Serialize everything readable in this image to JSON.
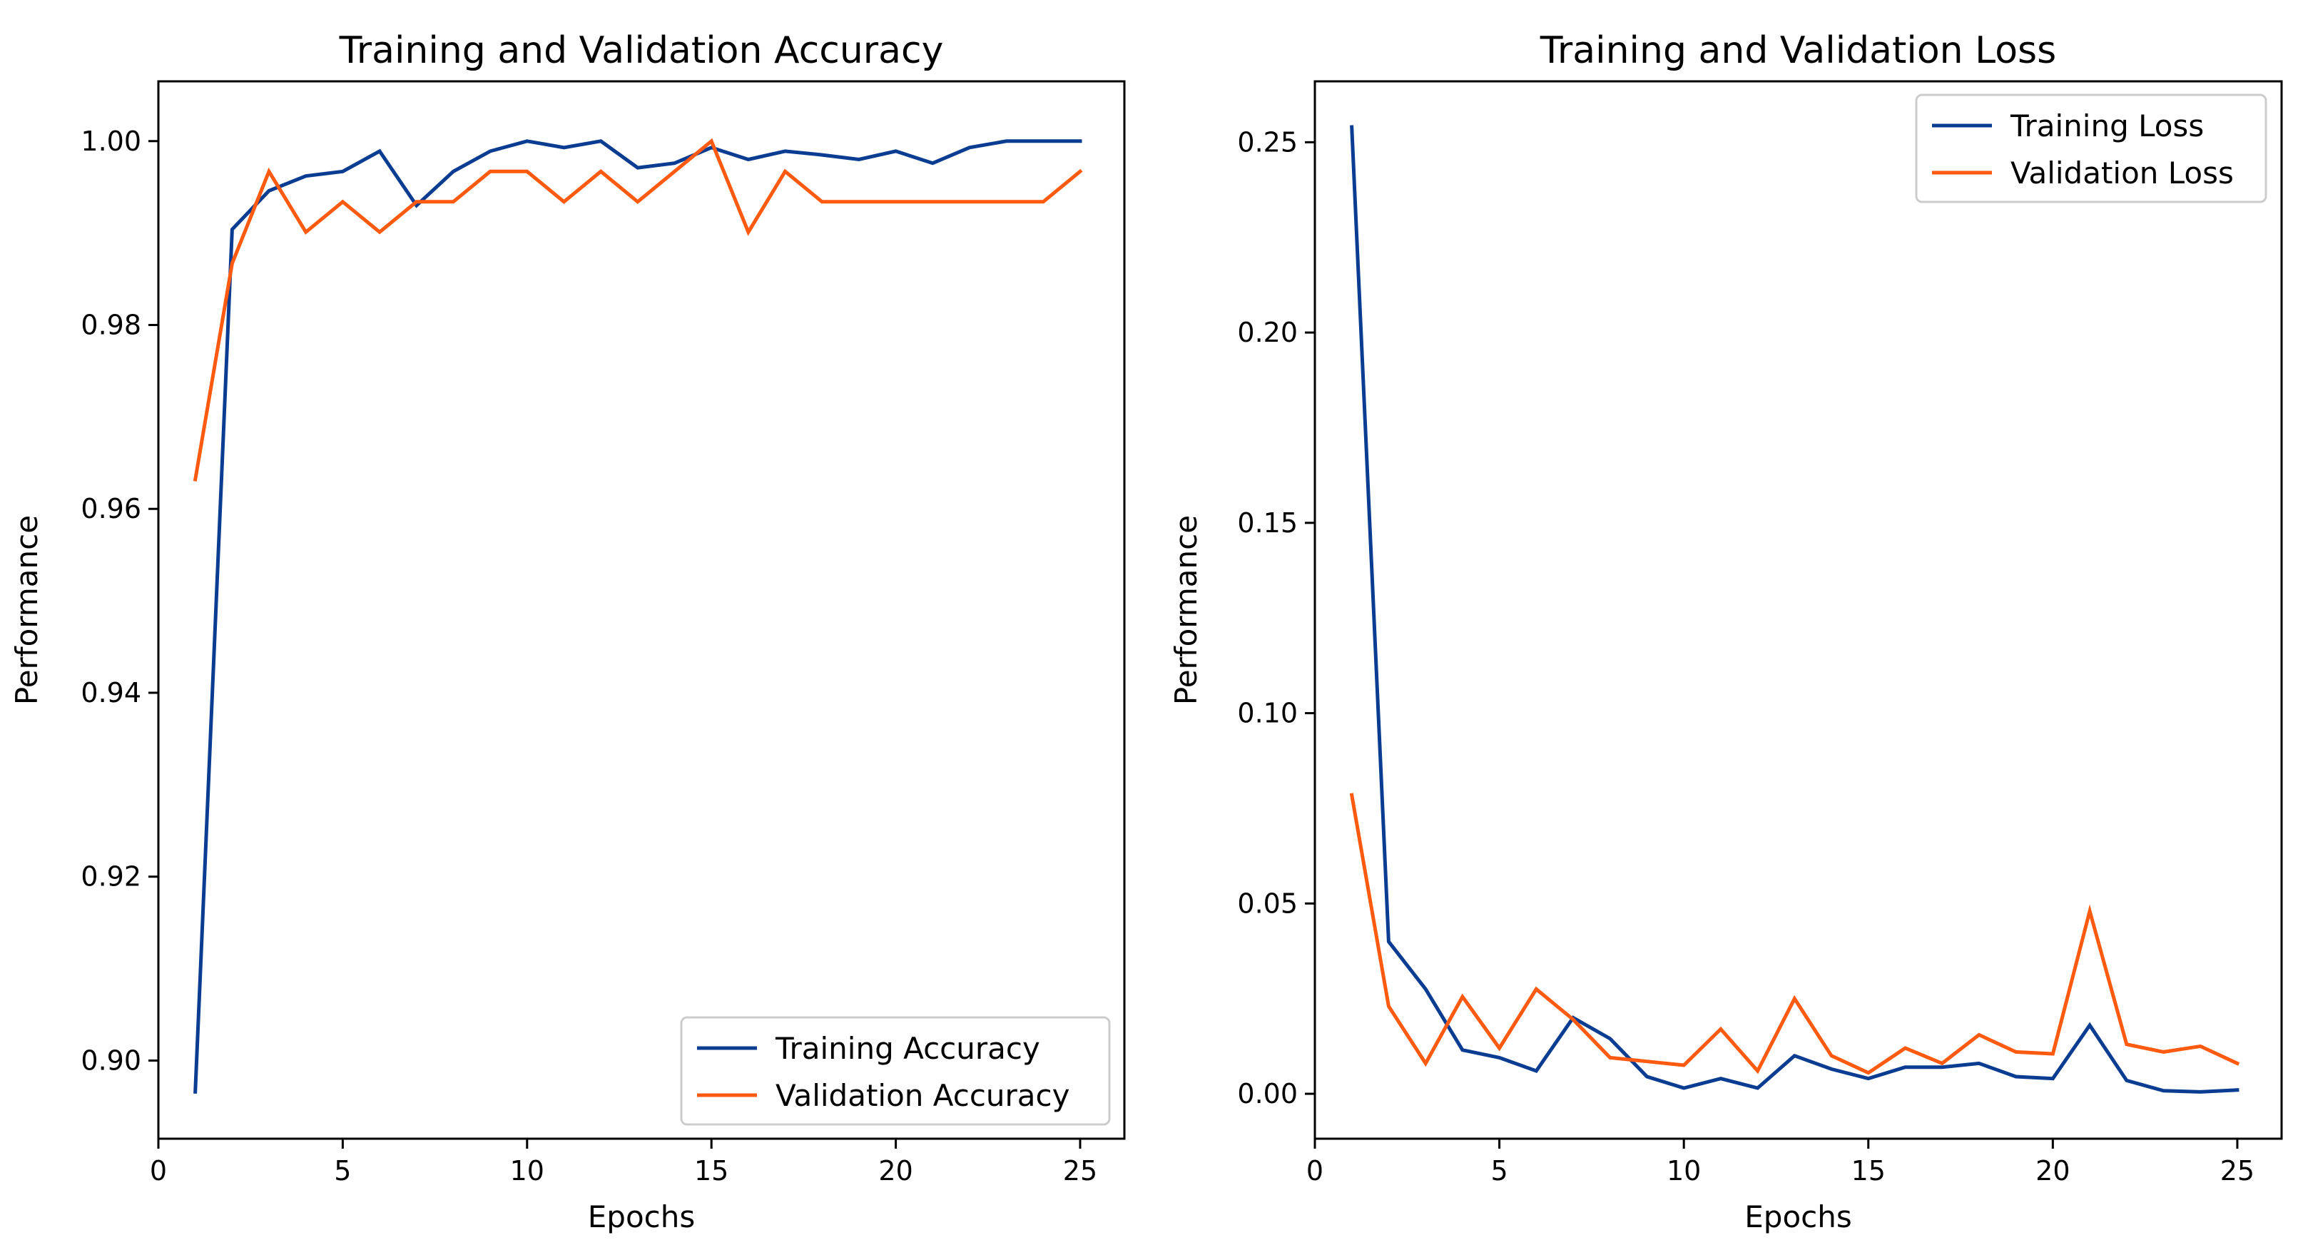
{
  "chart_data": [
    {
      "type": "line",
      "title": "Training and Validation Accuracy",
      "xlabel": "Epochs",
      "ylabel": "Performance",
      "xlim": [
        0,
        26.2
      ],
      "ylim": [
        0.8915,
        1.0065
      ],
      "xticks": [
        0,
        5,
        10,
        15,
        20,
        25
      ],
      "xtick_labels": [
        "0",
        "5",
        "10",
        "15",
        "20",
        "25"
      ],
      "yticks": [
        0.9,
        0.92,
        0.94,
        0.96,
        0.98,
        1.0
      ],
      "ytick_labels": [
        "0.90",
        "0.92",
        "0.94",
        "0.96",
        "0.98",
        "1.00"
      ],
      "grid": false,
      "legend_position": "lower-right",
      "x": [
        1,
        2,
        3,
        4,
        5,
        6,
        7,
        8,
        9,
        10,
        11,
        12,
        13,
        14,
        15,
        16,
        17,
        18,
        19,
        20,
        21,
        22,
        23,
        24,
        25
      ],
      "series": [
        {
          "name": "Training Accuracy",
          "color": "#0a3d91",
          "values": [
            0.8966,
            0.9904,
            0.9946,
            0.9962,
            0.9967,
            0.9989,
            0.993,
            0.9967,
            0.9989,
            1.0,
            0.9993,
            1.0,
            0.9971,
            0.9976,
            0.9993,
            0.998,
            0.9989,
            0.9985,
            0.998,
            0.9989,
            0.9976,
            0.9993,
            1.0,
            1.0,
            1.0
          ]
        },
        {
          "name": "Validation Accuracy",
          "color": "#ff5a0f",
          "values": [
            0.9632,
            0.9867,
            0.9967,
            0.9901,
            0.9934,
            0.9901,
            0.9934,
            0.9934,
            0.9967,
            0.9967,
            0.9934,
            0.9967,
            0.9934,
            0.9967,
            1.0,
            0.9901,
            0.9967,
            0.9934,
            0.9934,
            0.9934,
            0.9934,
            0.9934,
            0.9934,
            0.9934,
            0.9967
          ]
        }
      ]
    },
    {
      "type": "line",
      "title": "Training and Validation Loss",
      "xlabel": "Epochs",
      "ylabel": "Performance",
      "xlim": [
        0,
        26.2
      ],
      "ylim": [
        -0.0118,
        0.266
      ],
      "xticks": [
        0,
        5,
        10,
        15,
        20,
        25
      ],
      "xtick_labels": [
        "0",
        "5",
        "10",
        "15",
        "20",
        "25"
      ],
      "yticks": [
        0.0,
        0.05,
        0.1,
        0.15,
        0.2,
        0.25
      ],
      "ytick_labels": [
        "0.00",
        "0.05",
        "0.10",
        "0.15",
        "0.20",
        "0.25"
      ],
      "grid": false,
      "legend_position": "upper-right",
      "x": [
        1,
        2,
        3,
        4,
        5,
        6,
        7,
        8,
        9,
        10,
        11,
        12,
        13,
        14,
        15,
        16,
        17,
        18,
        19,
        20,
        21,
        22,
        23,
        24,
        25
      ],
      "series": [
        {
          "name": "Training Loss",
          "color": "#0a3d91",
          "values": [
            0.254,
            0.04,
            0.0275,
            0.0115,
            0.0095,
            0.006,
            0.02,
            0.0145,
            0.0045,
            0.0015,
            0.004,
            0.0015,
            0.01,
            0.0065,
            0.004,
            0.007,
            0.007,
            0.008,
            0.0045,
            0.004,
            0.018,
            0.0035,
            0.0008,
            0.0005,
            0.001
          ]
        },
        {
          "name": "Validation Loss",
          "color": "#ff5a0f",
          "values": [
            0.0785,
            0.023,
            0.008,
            0.0255,
            0.012,
            0.0275,
            0.0195,
            0.0095,
            0.0085,
            0.0075,
            0.017,
            0.006,
            0.025,
            0.01,
            0.0055,
            0.012,
            0.008,
            0.0155,
            0.011,
            0.0105,
            0.048,
            0.013,
            0.011,
            0.0125,
            0.008
          ]
        }
      ]
    }
  ]
}
